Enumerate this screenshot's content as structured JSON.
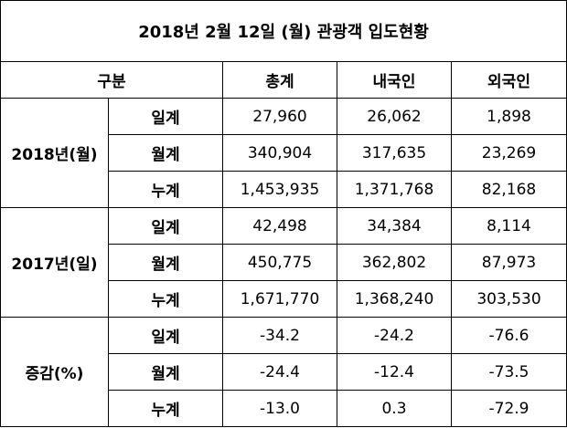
{
  "title": "2018년 2월 12일 (월) 관광객 입도현황",
  "header": [
    "구분",
    "총계",
    "내국인",
    "외국인"
  ],
  "groups": [
    {
      "label": "2018년(월)",
      "rows": [
        {
          "label": "일계",
          "values": [
            "27,960",
            "26,062",
            "1,898"
          ]
        },
        {
          "label": "월계",
          "values": [
            "340,904",
            "317,635",
            "23,269"
          ]
        },
        {
          "label": "누계",
          "values": [
            "1,453,935",
            "1,371,768",
            "82,168"
          ]
        }
      ]
    },
    {
      "label": "2017년(일)",
      "rows": [
        {
          "label": "일계",
          "values": [
            "42,498",
            "34,384",
            "8,114"
          ]
        },
        {
          "label": "월계",
          "values": [
            "450,775",
            "362,802",
            "87,973"
          ]
        },
        {
          "label": "누계",
          "values": [
            "1,671,770",
            "1,368,240",
            "303,530"
          ]
        }
      ]
    },
    {
      "label": "증감(%)",
      "rows": [
        {
          "label": "일계",
          "values": [
            "-34.2",
            "-24.2",
            "-76.6"
          ]
        },
        {
          "label": "월계",
          "values": [
            "-24.4",
            "-12.4",
            "-73.5"
          ]
        },
        {
          "label": "누계",
          "values": [
            "-13.0",
            "0.3",
            "-72.9"
          ]
        }
      ]
    }
  ]
}
